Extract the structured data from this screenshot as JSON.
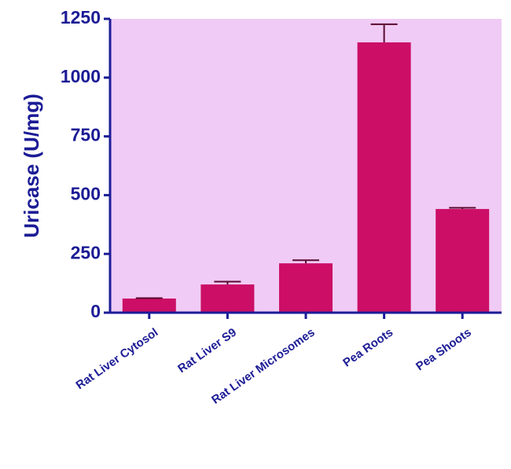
{
  "chart_data": {
    "type": "bar",
    "y_label": "Uricase (U/mg)",
    "categories": [
      "Rat Liver Cytosol",
      "Rat Liver S9",
      "Rat Liver Microsomes",
      "Pea Roots",
      "Pea Shoots"
    ],
    "values": [
      60,
      120,
      210,
      1150,
      441
    ],
    "errors": [
      2,
      12,
      13,
      77,
      5
    ],
    "color": "#cc0e66",
    "ylim": [
      0,
      1250
    ],
    "yticks": [
      0,
      250,
      500,
      750,
      1000,
      1250
    ]
  }
}
